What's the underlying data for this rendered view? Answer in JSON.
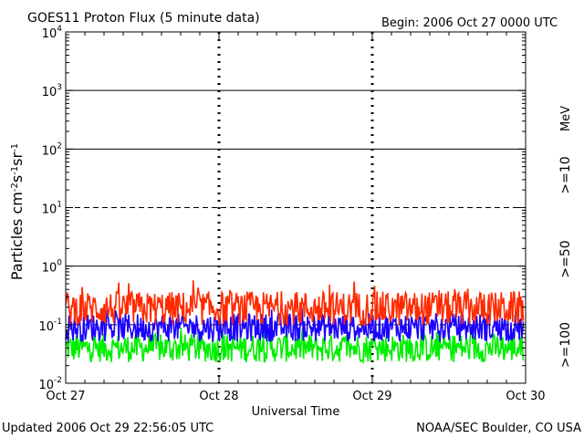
{
  "header": {
    "title": "GOES11 Proton Flux (5 minute data)",
    "begin": "Begin: 2006 Oct 27 0000 UTC"
  },
  "footer": {
    "updated": "Updated 2006 Oct 29 22:56:05 UTC",
    "credit": "NOAA/SEC Boulder, CO USA"
  },
  "colors": {
    "ge10": "#ff2a00",
    "ge50": "#1a00ff",
    "ge100": "#00ee00",
    "axis": "#000000",
    "background": "#ffffff"
  },
  "chart_data": {
    "type": "line",
    "title": "GOES11 Proton Flux (5 minute data)",
    "xlabel": "Universal Time",
    "ylabel": "Particles cm⁻²s⁻¹sr⁻¹",
    "yscale": "log",
    "ylim": [
      0.01,
      10000
    ],
    "x_ticks": [
      "Oct 27",
      "Oct 28",
      "Oct 29",
      "Oct 30"
    ],
    "y_ticks": [
      {
        "base": "10",
        "exp": "-2"
      },
      {
        "base": "10",
        "exp": "-1"
      },
      {
        "base": "10",
        "exp": "0"
      },
      {
        "base": "10",
        "exp": "1"
      },
      {
        "base": "10",
        "exp": "2"
      },
      {
        "base": "10",
        "exp": "3"
      },
      {
        "base": "10",
        "exp": "4"
      }
    ],
    "legend_unit": "MeV",
    "series": [
      {
        "name": ">=10",
        "typical": 0.19,
        "min": 0.1,
        "max": 0.6
      },
      {
        "name": ">=50",
        "typical": 0.09,
        "min": 0.045,
        "max": 0.2
      },
      {
        "name": ">=100",
        "typical": 0.04,
        "min": 0.02,
        "max": 0.09
      }
    ],
    "grid": "solid at 10^0, 10^2, 10^3; dashed at 10^1; vertical dashed at day boundaries"
  }
}
